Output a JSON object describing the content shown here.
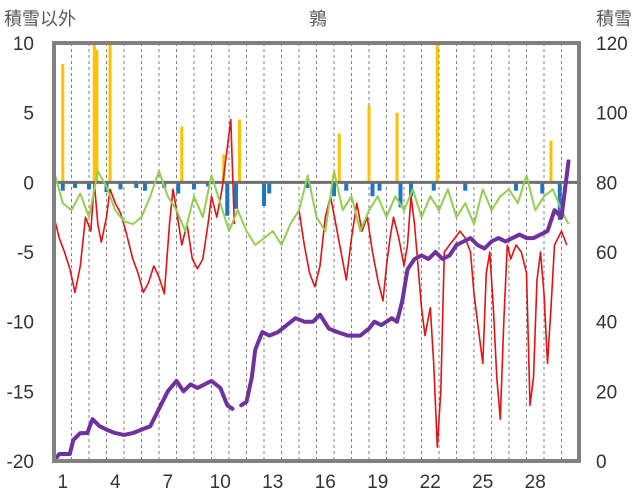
{
  "chart_data": {
    "type": "line",
    "title": "鶉",
    "ylabel_left": "積雪以外",
    "ylabel_right": "積雪",
    "y_left_range": [
      -20,
      10
    ],
    "y_left_ticks": [
      -20,
      -15,
      -10,
      -5,
      0,
      5,
      10
    ],
    "y_right_range": [
      0,
      120
    ],
    "y_right_ticks": [
      0,
      20,
      40,
      60,
      80,
      100,
      120
    ],
    "x_range": [
      0,
      30
    ],
    "x_ticks": [
      1,
      4,
      7,
      10,
      13,
      16,
      19,
      22,
      25,
      28
    ],
    "grid": "vertical-dashed",
    "colors": {
      "temperature": "#e81010",
      "sunshine": "#92d050",
      "precipitation": "#ffc000",
      "snowfall": "#1f77c4",
      "snow_depth": "#7030a0",
      "frame": "#808080"
    },
    "series": [
      {
        "key": "temperature",
        "axis": "left",
        "points": [
          [
            0,
            -2.5
          ],
          [
            0.3,
            -4
          ],
          [
            0.6,
            -5
          ],
          [
            0.9,
            -6.2
          ],
          [
            1.2,
            -7.9
          ],
          [
            1.5,
            -6
          ],
          [
            1.8,
            -2.5
          ],
          [
            2.1,
            -3.5
          ],
          [
            2.3,
            0
          ],
          [
            2.5,
            -3
          ],
          [
            2.7,
            -4.3
          ],
          [
            3.0,
            -2.5
          ],
          [
            3.2,
            -0.5
          ],
          [
            3.5,
            -1.5
          ],
          [
            3.8,
            -2.2
          ],
          [
            4.1,
            -3.5
          ],
          [
            4.5,
            -5.5
          ],
          [
            4.8,
            -6.5
          ],
          [
            5.1,
            -7.9
          ],
          [
            5.4,
            -7.2
          ],
          [
            5.7,
            -6
          ],
          [
            6.0,
            -6.8
          ],
          [
            6.3,
            -8
          ],
          [
            6.6,
            -3
          ],
          [
            6.8,
            -0.5
          ],
          [
            7.0,
            -2
          ],
          [
            7.3,
            -4.5
          ],
          [
            7.6,
            -3
          ],
          [
            7.9,
            -5.5
          ],
          [
            8.2,
            -6.2
          ],
          [
            8.5,
            -5.5
          ],
          [
            8.8,
            -3
          ],
          [
            9.0,
            -1
          ],
          [
            9.3,
            -2.5
          ],
          [
            9.6,
            -0.5
          ],
          [
            9.9,
            2.5
          ],
          [
            10.1,
            4.5
          ],
          [
            10.3,
            -3
          ]
        ]
      },
      {
        "key": "temperature",
        "axis": "left",
        "points": [
          [
            14.0,
            -2
          ],
          [
            14.3,
            -4.5
          ],
          [
            14.6,
            -6.5
          ],
          [
            14.9,
            -7.5
          ],
          [
            15.2,
            -6
          ],
          [
            15.5,
            -2.5
          ],
          [
            15.8,
            -1
          ],
          [
            16.1,
            -3
          ],
          [
            16.4,
            -5
          ],
          [
            16.7,
            -7
          ],
          [
            17.0,
            -4
          ],
          [
            17.3,
            -1.5
          ],
          [
            17.6,
            -3.5
          ],
          [
            17.9,
            -2.5
          ],
          [
            18.2,
            -5
          ],
          [
            18.5,
            -7
          ],
          [
            18.8,
            -8.5
          ],
          [
            19.0,
            -6
          ],
          [
            19.2,
            -4
          ],
          [
            19.4,
            -2.5
          ],
          [
            19.7,
            -4
          ],
          [
            20.0,
            -6
          ],
          [
            20.2,
            -4.5
          ],
          [
            20.4,
            -1
          ],
          [
            20.6,
            -3
          ],
          [
            20.8,
            -6
          ],
          [
            21.0,
            -9
          ],
          [
            21.2,
            -11
          ],
          [
            21.5,
            -9
          ],
          [
            21.7,
            -13
          ],
          [
            21.9,
            -19
          ],
          [
            22.1,
            -15
          ],
          [
            22.3,
            -5
          ],
          [
            22.6,
            -4.5
          ],
          [
            22.9,
            -4
          ],
          [
            23.2,
            -3.5
          ],
          [
            23.5,
            -4
          ],
          [
            23.8,
            -5
          ],
          [
            24.0,
            -8
          ],
          [
            24.2,
            -10
          ],
          [
            24.5,
            -13
          ],
          [
            24.7,
            -6.5
          ],
          [
            24.9,
            -5
          ],
          [
            25.1,
            -9
          ],
          [
            25.3,
            -14
          ],
          [
            25.5,
            -17
          ],
          [
            25.7,
            -10
          ],
          [
            25.9,
            -4.5
          ],
          [
            26.1,
            -5.5
          ],
          [
            26.4,
            -4.5
          ],
          [
            26.7,
            -5
          ],
          [
            27.0,
            -6.5
          ],
          [
            27.2,
            -16
          ],
          [
            27.4,
            -14
          ],
          [
            27.6,
            -7
          ],
          [
            27.8,
            -5
          ],
          [
            28.0,
            -8
          ],
          [
            28.2,
            -13
          ],
          [
            28.4,
            -9
          ],
          [
            28.6,
            -4.5
          ],
          [
            28.8,
            -4
          ],
          [
            29.0,
            -3.5
          ],
          [
            29.3,
            -4.5
          ]
        ]
      },
      {
        "key": "sunshine",
        "axis": "left",
        "points": [
          [
            0,
            0.8
          ],
          [
            0.5,
            -1.5
          ],
          [
            1.0,
            -2
          ],
          [
            1.5,
            -0.8
          ],
          [
            2.0,
            -2.5
          ],
          [
            2.5,
            0.8
          ],
          [
            3.0,
            -0.3
          ],
          [
            3.5,
            -2
          ],
          [
            4.0,
            -2.8
          ],
          [
            4.5,
            -3
          ],
          [
            5.0,
            -2.5
          ],
          [
            5.5,
            -1
          ],
          [
            6.0,
            0.8
          ],
          [
            6.5,
            -1
          ],
          [
            7.0,
            -2
          ],
          [
            7.5,
            -3.5
          ],
          [
            8.0,
            -1
          ],
          [
            8.5,
            -2.5
          ],
          [
            9.0,
            0.5
          ],
          [
            9.5,
            -1.5
          ],
          [
            10.0,
            -3.5
          ],
          [
            10.5,
            -2
          ],
          [
            11.0,
            -3.5
          ],
          [
            11.5,
            -4.5
          ],
          [
            12.0,
            -4
          ],
          [
            12.5,
            -3.5
          ],
          [
            13.0,
            -4.5
          ],
          [
            13.5,
            -3
          ],
          [
            14.0,
            -2
          ],
          [
            14.5,
            0.5
          ],
          [
            15.0,
            -2.5
          ],
          [
            15.5,
            -3.5
          ],
          [
            16.0,
            0.8
          ],
          [
            16.5,
            -2
          ],
          [
            17.0,
            -1
          ],
          [
            17.5,
            -3.5
          ],
          [
            18.0,
            -2
          ],
          [
            18.5,
            -1
          ],
          [
            19.0,
            -2.5
          ],
          [
            19.5,
            -1
          ],
          [
            20.0,
            -2
          ],
          [
            20.5,
            -0.5
          ],
          [
            21.0,
            -2.5
          ],
          [
            21.5,
            -1
          ],
          [
            22.0,
            -2
          ],
          [
            22.5,
            -0.5
          ],
          [
            23.0,
            -2.5
          ],
          [
            23.5,
            -1.5
          ],
          [
            24.0,
            -3
          ],
          [
            24.5,
            -0.5
          ],
          [
            25.0,
            -2
          ],
          [
            25.5,
            -1
          ],
          [
            26.0,
            -0.5
          ],
          [
            26.5,
            -1.5
          ],
          [
            27.0,
            0.5
          ],
          [
            27.5,
            -2
          ],
          [
            28.0,
            -1
          ],
          [
            28.5,
            -0.5
          ],
          [
            29.0,
            -2
          ],
          [
            29.4,
            -3
          ]
        ]
      }
    ],
    "snow_depth": {
      "axis": "right",
      "segments": [
        [
          [
            0,
            0
          ],
          [
            0.3,
            2
          ],
          [
            0.9,
            2
          ],
          [
            1.1,
            6
          ],
          [
            1.5,
            8
          ],
          [
            1.9,
            8
          ],
          [
            2.2,
            12
          ],
          [
            2.6,
            10
          ],
          [
            3.0,
            9
          ],
          [
            3.5,
            8
          ],
          [
            4.0,
            7.5
          ],
          [
            4.5,
            8
          ],
          [
            5.0,
            9
          ],
          [
            5.5,
            10
          ],
          [
            6.0,
            15
          ],
          [
            6.5,
            20
          ],
          [
            7.0,
            23
          ],
          [
            7.4,
            20
          ],
          [
            7.8,
            22
          ],
          [
            8.2,
            21
          ],
          [
            8.6,
            22
          ],
          [
            9.0,
            23
          ],
          [
            9.5,
            21
          ],
          [
            9.9,
            16
          ],
          [
            10.2,
            15
          ]
        ],
        [
          [
            10.7,
            16
          ],
          [
            11.0,
            17
          ],
          [
            11.3,
            24
          ],
          [
            11.5,
            32
          ],
          [
            11.9,
            37
          ],
          [
            12.3,
            36
          ],
          [
            12.8,
            37
          ],
          [
            13.3,
            39
          ],
          [
            13.8,
            41
          ],
          [
            14.3,
            40
          ],
          [
            14.8,
            40
          ],
          [
            15.2,
            42
          ],
          [
            15.7,
            38
          ],
          [
            16.2,
            37
          ],
          [
            16.8,
            36
          ],
          [
            17.5,
            36
          ],
          [
            18.0,
            38
          ],
          [
            18.3,
            40
          ],
          [
            18.7,
            39
          ],
          [
            19.0,
            40
          ],
          [
            19.3,
            41
          ],
          [
            19.6,
            40
          ],
          [
            19.9,
            46
          ],
          [
            20.2,
            55
          ],
          [
            20.6,
            58
          ],
          [
            21.0,
            59
          ],
          [
            21.4,
            58
          ],
          [
            21.8,
            60
          ],
          [
            22.2,
            58
          ],
          [
            22.6,
            59
          ],
          [
            23.0,
            62
          ],
          [
            23.4,
            63
          ],
          [
            23.8,
            64
          ],
          [
            24.2,
            62
          ],
          [
            24.6,
            61
          ],
          [
            25.0,
            63
          ],
          [
            25.4,
            64
          ],
          [
            25.8,
            63
          ],
          [
            26.2,
            64
          ],
          [
            26.6,
            65
          ],
          [
            27.0,
            64
          ],
          [
            27.4,
            64
          ],
          [
            27.8,
            65
          ],
          [
            28.2,
            66
          ],
          [
            28.6,
            72
          ],
          [
            29.0,
            70
          ],
          [
            29.2,
            78
          ],
          [
            29.4,
            86
          ]
        ]
      ]
    },
    "precipitation_bars": [
      [
        0.5,
        8.5
      ],
      [
        2.3,
        10
      ],
      [
        2.45,
        9.5
      ],
      [
        3.2,
        10
      ],
      [
        7.3,
        4
      ],
      [
        9.7,
        2
      ],
      [
        10.6,
        4.5
      ],
      [
        16.3,
        3.5
      ],
      [
        18.0,
        5.5
      ],
      [
        19.6,
        5
      ],
      [
        21.9,
        10
      ],
      [
        28.4,
        3
      ]
    ],
    "snowfall_bars": [
      [
        0.5,
        -0.6
      ],
      [
        1.2,
        -0.4
      ],
      [
        2.0,
        -0.5
      ],
      [
        3.0,
        -0.7
      ],
      [
        3.8,
        -0.5
      ],
      [
        4.7,
        -0.4
      ],
      [
        5.2,
        -0.6
      ],
      [
        6.3,
        -0.4
      ],
      [
        7.1,
        -0.8
      ],
      [
        8.0,
        -0.5
      ],
      [
        8.8,
        -0.3
      ],
      [
        9.9,
        -2.4
      ],
      [
        10.4,
        -1.9
      ],
      [
        12.0,
        -1.7
      ],
      [
        12.3,
        -0.8
      ],
      [
        14.5,
        -0.4
      ],
      [
        16.0,
        -1.0
      ],
      [
        16.7,
        -0.6
      ],
      [
        18.2,
        -1.0
      ],
      [
        18.6,
        -0.6
      ],
      [
        19.8,
        -1.8
      ],
      [
        20.4,
        -1.0
      ],
      [
        21.7,
        -0.6
      ],
      [
        23.5,
        -0.6
      ],
      [
        26.4,
        -0.6
      ],
      [
        27.9,
        -0.8
      ],
      [
        28.9,
        -2.7
      ]
    ]
  }
}
